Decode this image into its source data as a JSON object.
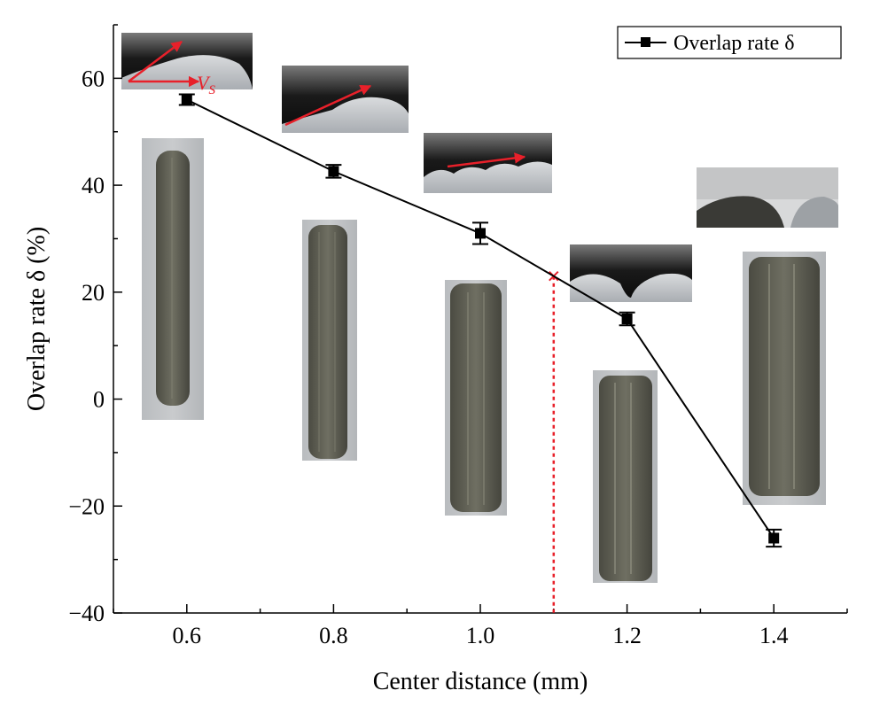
{
  "chart_data": {
    "type": "line",
    "xlabel": "Center distance (mm)",
    "ylabel": "Overlap rate δ (%)",
    "xlim": [
      0.5,
      1.5
    ],
    "ylim": [
      -40,
      70
    ],
    "x_ticks": [
      0.6,
      0.8,
      1.0,
      1.2,
      1.4
    ],
    "x_tick_labels": [
      "0.6",
      "0.8",
      "1.0",
      "1.2",
      "1.4"
    ],
    "y_ticks": [
      -40,
      -20,
      0,
      20,
      40,
      60
    ],
    "y_tick_labels": [
      "−40",
      "−20",
      "0",
      "20",
      "40",
      "60"
    ],
    "grid": false,
    "legend_position": "top-right",
    "series": [
      {
        "name": "Overlap rate δ",
        "x": [
          0.6,
          0.8,
          1.0,
          1.2,
          1.4
        ],
        "y": [
          56,
          42.6,
          31,
          15,
          -26
        ],
        "error": [
          1,
          1.2,
          2,
          1.2,
          1.6
        ],
        "color": "#000000",
        "marker": "square"
      }
    ],
    "annotations": [
      {
        "type": "vertical-dashed-line",
        "x": 1.1,
        "y_top": 23,
        "color": "#e8202a"
      },
      {
        "type": "cross-marker",
        "x": 1.1,
        "y": 23,
        "color": "#e8202a"
      },
      {
        "type": "label",
        "text": "V",
        "subscript": "S",
        "color": "#e8202a"
      }
    ]
  },
  "insets": [
    {
      "name": "cross-section-0-6",
      "kind": "cross-section"
    },
    {
      "name": "cross-section-0-8",
      "kind": "cross-section"
    },
    {
      "name": "cross-section-1-0",
      "kind": "cross-section"
    },
    {
      "name": "cross-section-1-2",
      "kind": "cross-section"
    },
    {
      "name": "cross-section-1-4",
      "kind": "cross-section"
    },
    {
      "name": "track-photo-0-6",
      "kind": "track",
      "tracks": 1
    },
    {
      "name": "track-photo-0-8",
      "kind": "track",
      "tracks": 1
    },
    {
      "name": "track-photo-1-0",
      "kind": "track",
      "tracks": 2
    },
    {
      "name": "track-photo-1-2",
      "kind": "track",
      "tracks": 3
    },
    {
      "name": "track-photo-1-4",
      "kind": "track",
      "tracks": 3
    }
  ]
}
